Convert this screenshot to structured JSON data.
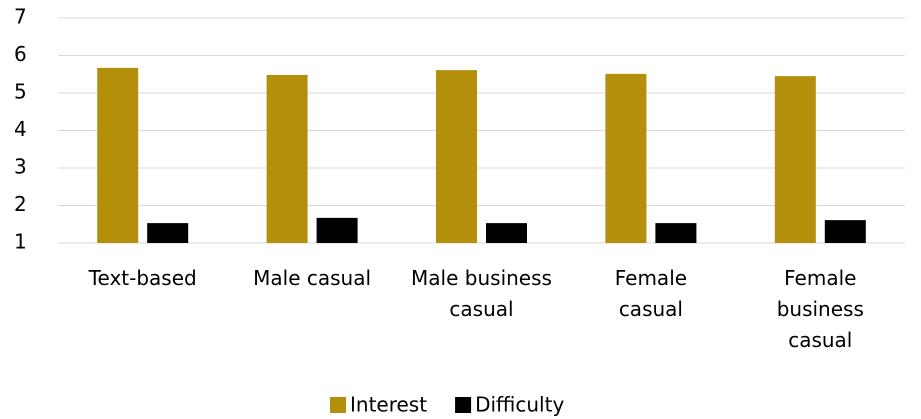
{
  "chart_data": {
    "type": "bar",
    "categories": [
      "Text-based",
      "Male casual",
      "Male business casual",
      "Female casual",
      "Female business casual"
    ],
    "series": [
      {
        "name": "Interest",
        "color": "#b38f0b",
        "values": [
          5.67,
          5.48,
          5.61,
          5.51,
          5.45
        ]
      },
      {
        "name": "Difficulty",
        "color": "#000000",
        "values": [
          1.53,
          1.67,
          1.53,
          1.53,
          1.61
        ]
      }
    ],
    "ylim": [
      1,
      7
    ],
    "yticks": [
      1,
      2,
      3,
      4,
      5,
      6,
      7
    ],
    "grid": true,
    "legend": "bottom"
  }
}
